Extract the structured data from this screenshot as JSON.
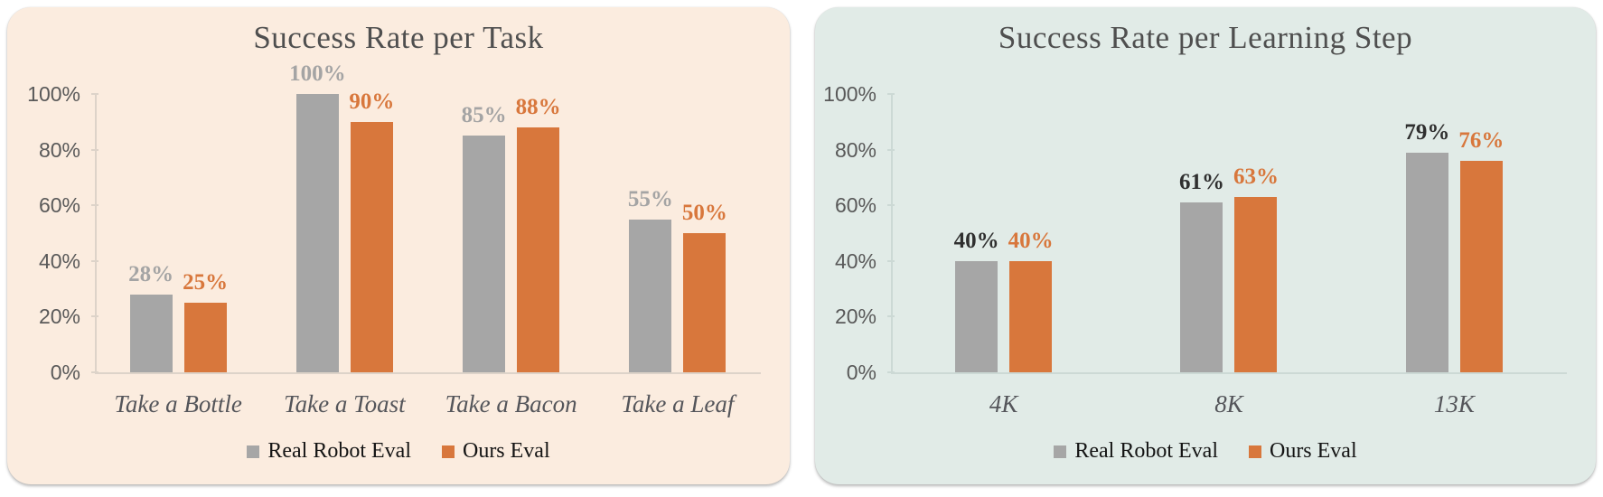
{
  "page": {
    "background": "#ffffff"
  },
  "chart_data": [
    {
      "type": "bar",
      "title": "Success Rate per Task",
      "panel_bg": "#fbecdf",
      "line_color": "#ddd3c9",
      "categories": [
        "Take a Bottle",
        "Take a Toast",
        "Take a Bacon",
        "Take a Leaf"
      ],
      "series": [
        {
          "name": "Real Robot Eval",
          "color": "#a6a6a6",
          "label_color": "#a4a4a4",
          "values": [
            28,
            100,
            85,
            55
          ],
          "value_labels": [
            "28%",
            "100%",
            "85%",
            "55%"
          ]
        },
        {
          "name": "Ours Eval",
          "color": "#d8773c",
          "label_color": "#d8773c",
          "values": [
            25,
            90,
            88,
            50
          ],
          "value_labels": [
            "25%",
            "90%",
            "88%",
            "50%"
          ]
        }
      ],
      "axis": {
        "ticks": [
          {
            "label": "0%",
            "value": 0
          },
          {
            "label": "20%",
            "value": 20
          },
          {
            "label": "40%",
            "value": 40
          },
          {
            "label": "60%",
            "value": 60
          },
          {
            "label": "80%",
            "value": 80
          },
          {
            "label": "100%",
            "value": 100
          }
        ],
        "ylim": [
          0,
          100
        ],
        "grid": false
      },
      "legend_position": "bottom"
    },
    {
      "type": "bar",
      "title": "Success Rate per Learning Step",
      "panel_bg": "#e1ebe7",
      "line_color": "#ccd9d5",
      "categories": [
        "4K",
        "8K",
        "13K"
      ],
      "series": [
        {
          "name": "Real Robot Eval",
          "color": "#a6a6a6",
          "label_color": "#2f2f2f",
          "values": [
            40,
            61,
            79
          ],
          "value_labels": [
            "40%",
            "61%",
            "79%"
          ]
        },
        {
          "name": "Ours Eval",
          "color": "#d8773c",
          "label_color": "#d8773c",
          "values": [
            40,
            63,
            76
          ],
          "value_labels": [
            "40%",
            "63%",
            "76%"
          ]
        }
      ],
      "axis": {
        "ticks": [
          {
            "label": "0%",
            "value": 0
          },
          {
            "label": "20%",
            "value": 20
          },
          {
            "label": "40%",
            "value": 40
          },
          {
            "label": "60%",
            "value": 60
          },
          {
            "label": "80%",
            "value": 80
          },
          {
            "label": "100%",
            "value": 100
          }
        ],
        "ylim": [
          0,
          100
        ],
        "grid": false
      },
      "legend_position": "bottom"
    }
  ]
}
